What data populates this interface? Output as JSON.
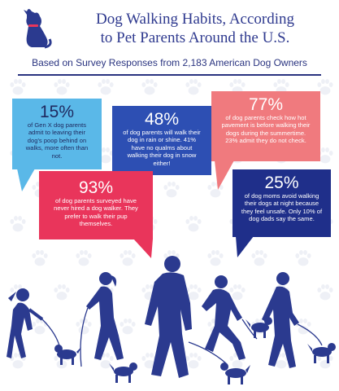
{
  "header": {
    "title_line1": "Dog Walking Habits, According",
    "title_line2": "to Pet Parents Around the U.S.",
    "subtitle": "Based on Survey Responses from 2,183 American Dog Owners"
  },
  "colors": {
    "navy": "#2a3480",
    "light_blue": "#5ab8e8",
    "blue": "#2d4fb3",
    "salmon": "#f07a7e",
    "pink_red": "#e9355b",
    "dark_navy": "#1f2f8a",
    "silhouette": "#2b3a8f",
    "paw_bg": "#eef0f6"
  },
  "stats": [
    {
      "percent": "15%",
      "text": "of Gen X dog parents admit to leaving their dog's poop behind on walks, more often than not."
    },
    {
      "percent": "48%",
      "text": "of dog parents will walk their dog in rain or shine. 41% have no qualms about walking their dog in snow either!"
    },
    {
      "percent": "77%",
      "text": "of dog parents check how hot pavement is before walking their dogs during the summertime. 23% admit they do not check."
    },
    {
      "percent": "93%",
      "text": "of dog parents surveyed have never hired a dog walker. They prefer to walk their pup themselves."
    },
    {
      "percent": "25%",
      "text": "of dog moms avoid walking their dogs at night because they feel unsafe. Only 10% of dog dads say the same."
    }
  ],
  "icons": [
    "dog-logo-icon",
    "paw-print-icon",
    "walker-silhouette-icon",
    "dog-silhouette-icon"
  ]
}
